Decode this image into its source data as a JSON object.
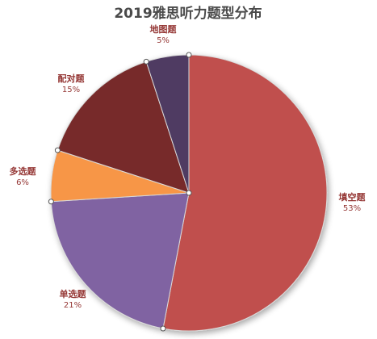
{
  "chart_data": {
    "type": "pie",
    "title": "2019雅思听力题型分布",
    "start_angle_deg": 0,
    "direction": "clockwise",
    "slices": [
      {
        "label": "填空题",
        "value": 53,
        "display": "53%",
        "color": "#c0504d",
        "label_color": "#953735"
      },
      {
        "label": "单选题",
        "value": 21,
        "display": "21%",
        "color": "#8064a2",
        "label_color": "#953735"
      },
      {
        "label": "多选题",
        "value": 6,
        "display": "6%",
        "color": "#f79646",
        "label_color": "#953735"
      },
      {
        "label": "配对题",
        "value": 15,
        "display": "15%",
        "color": "#772c2a",
        "label_color": "#953735"
      },
      {
        "label": "地图题",
        "value": 5,
        "display": "5%",
        "color": "#4f3b62",
        "label_color": "#953735"
      }
    ]
  }
}
